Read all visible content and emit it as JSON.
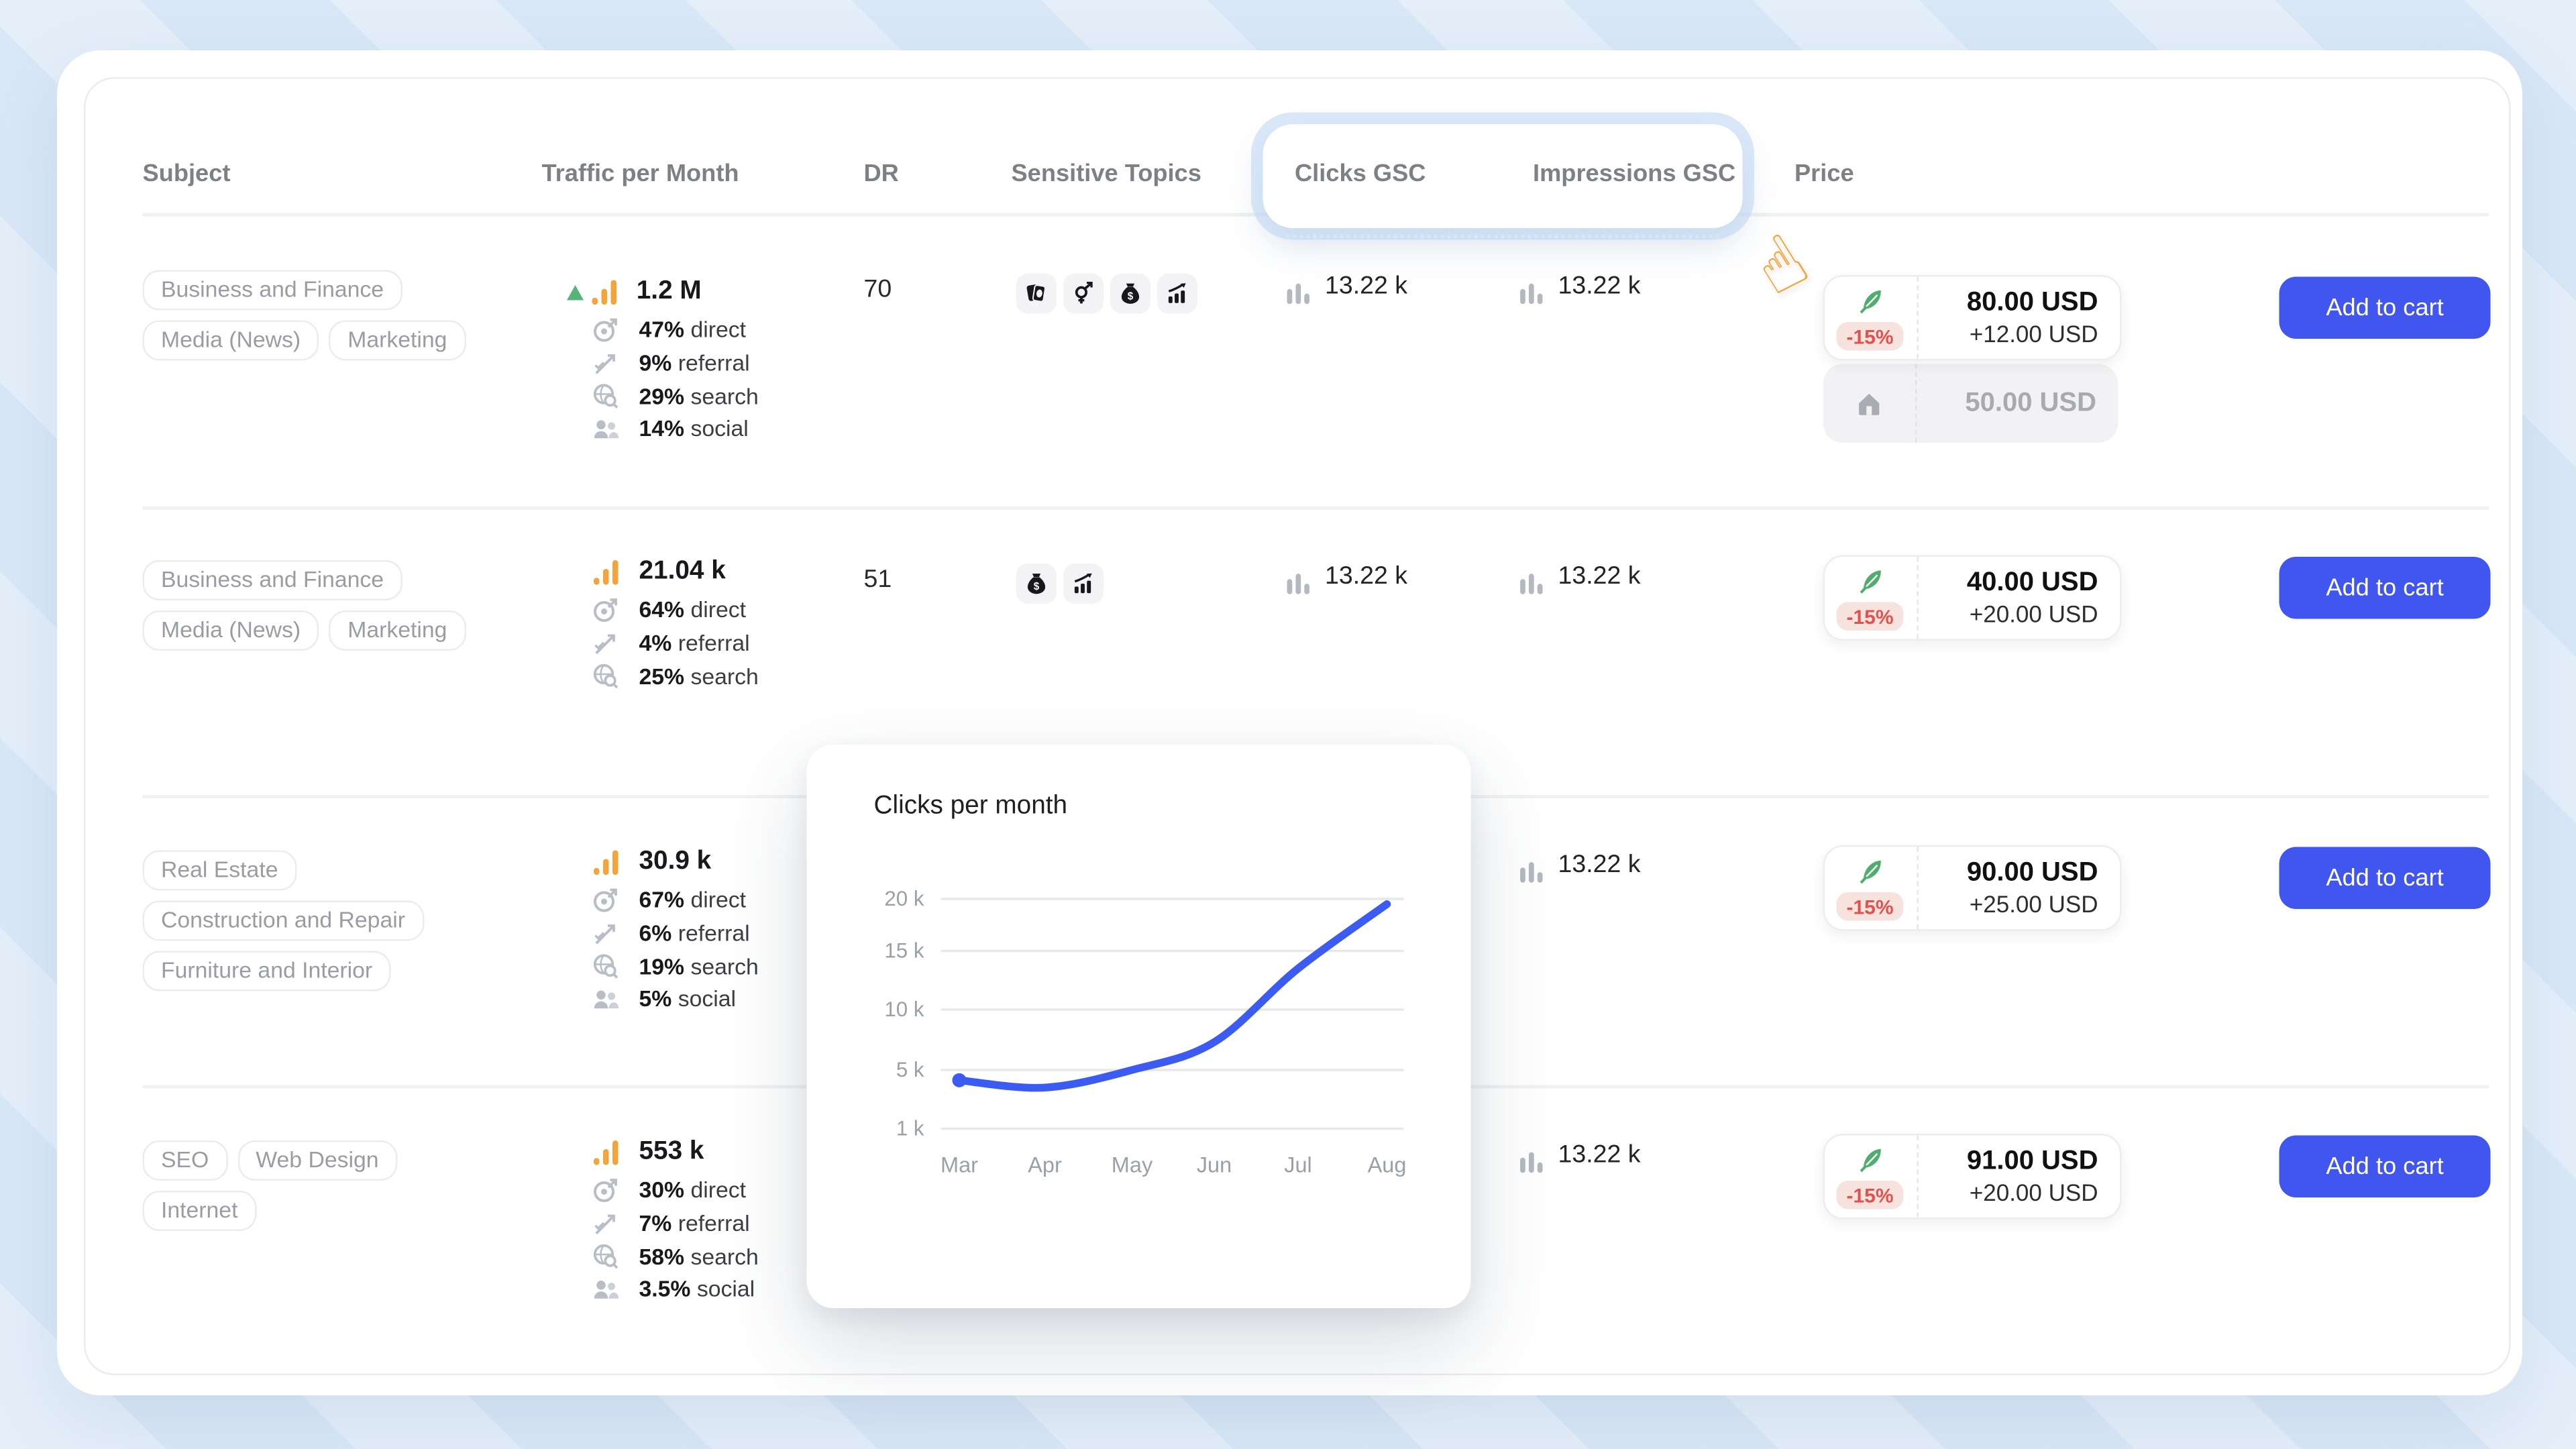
{
  "table": {
    "columns": {
      "subject": "Subject",
      "traffic": "Traffic per Month",
      "dr": "DR",
      "sensitive_topics": "Sensitive Topics",
      "clicks_gsc": "Clicks GSC",
      "impressions_gsc": "Impressions GSC",
      "price": "Price"
    },
    "add_to_cart_label": "Add to cart",
    "rows": [
      {
        "tags": [
          "Business and Finance",
          "Media (News)",
          "Marketing"
        ],
        "traffic_value": "1.2 M",
        "traffic_trend": "up",
        "breakdown": [
          {
            "value": "47%",
            "label": "direct"
          },
          {
            "value": "9%",
            "label": "referral"
          },
          {
            "value": "29%",
            "label": "search"
          },
          {
            "value": "14%",
            "label": "social"
          }
        ],
        "dr": "70",
        "sensitive_topics": [
          "gambling-cards",
          "adult-gender",
          "money-loans",
          "trading-growth"
        ],
        "clicks_gsc": "13.22 k",
        "impressions_gsc": "13.22 k",
        "price": {
          "discount": "-15%",
          "amount": "80.00 USD",
          "commission": "+12.00 USD",
          "publisher_amount": "50.00 USD"
        }
      },
      {
        "tags": [
          "Business and Finance",
          "Media (News)",
          "Marketing"
        ],
        "traffic_value": "21.04 k",
        "breakdown": [
          {
            "value": "64%",
            "label": "direct"
          },
          {
            "value": "4%",
            "label": "referral"
          },
          {
            "value": "25%",
            "label": "search"
          }
        ],
        "dr": "51",
        "sensitive_topics": [
          "money-loans",
          "trading-growth"
        ],
        "clicks_gsc": "13.22 k",
        "impressions_gsc": "13.22 k",
        "price": {
          "discount": "-15%",
          "amount": "40.00 USD",
          "commission": "+20.00 USD"
        }
      },
      {
        "tags": [
          "Real Estate",
          "Construction and Repair",
          "Furniture and Interior"
        ],
        "traffic_value": "30.9 k",
        "breakdown": [
          {
            "value": "67%",
            "label": "direct"
          },
          {
            "value": "6%",
            "label": "referral"
          },
          {
            "value": "19%",
            "label": "search"
          },
          {
            "value": "5%",
            "label": "social"
          }
        ],
        "impressions_gsc": "13.22 k",
        "price": {
          "discount": "-15%",
          "amount": "90.00 USD",
          "commission": "+25.00 USD"
        }
      },
      {
        "tags": [
          "SEO",
          "Web Design",
          "Internet"
        ],
        "traffic_value": "553 k",
        "breakdown": [
          {
            "value": "30%",
            "label": "direct"
          },
          {
            "value": "7%",
            "label": "referral"
          },
          {
            "value": "58%",
            "label": "search"
          },
          {
            "value": "3.5%",
            "label": "social"
          }
        ],
        "impressions_gsc": "13.22 k",
        "price": {
          "discount": "-15%",
          "amount": "91.00 USD",
          "commission": "+20.00 USD"
        }
      }
    ]
  },
  "popup": {
    "title": "Clicks per month"
  },
  "chart_data": {
    "type": "line",
    "title": "Clicks per month",
    "x": [
      "Mar",
      "Apr",
      "May",
      "Jun",
      "Jul",
      "Aug"
    ],
    "series": [
      {
        "name": "Clicks",
        "values": [
          4300,
          3800,
          5000,
          7300,
          13500,
          19500
        ]
      }
    ],
    "y_gridlines": [
      20000,
      15000,
      10000,
      5000,
      1000
    ],
    "y_tick_labels": [
      "20 k",
      "15 k",
      "10 k",
      "5 k",
      "1 k"
    ],
    "ylim": [
      1000,
      21000
    ],
    "line_color": "#3c5bf2",
    "grid": true,
    "legend": false
  },
  "cursor": {
    "glyph": "☝"
  },
  "colors": {
    "accent_blue": "#4156ee",
    "chart_line": "#3c5bf2",
    "discount_red": "#e2514d",
    "traffic_orange": "#f3a43b",
    "trend_green": "#56b47b",
    "background": "#d7e7f7"
  }
}
